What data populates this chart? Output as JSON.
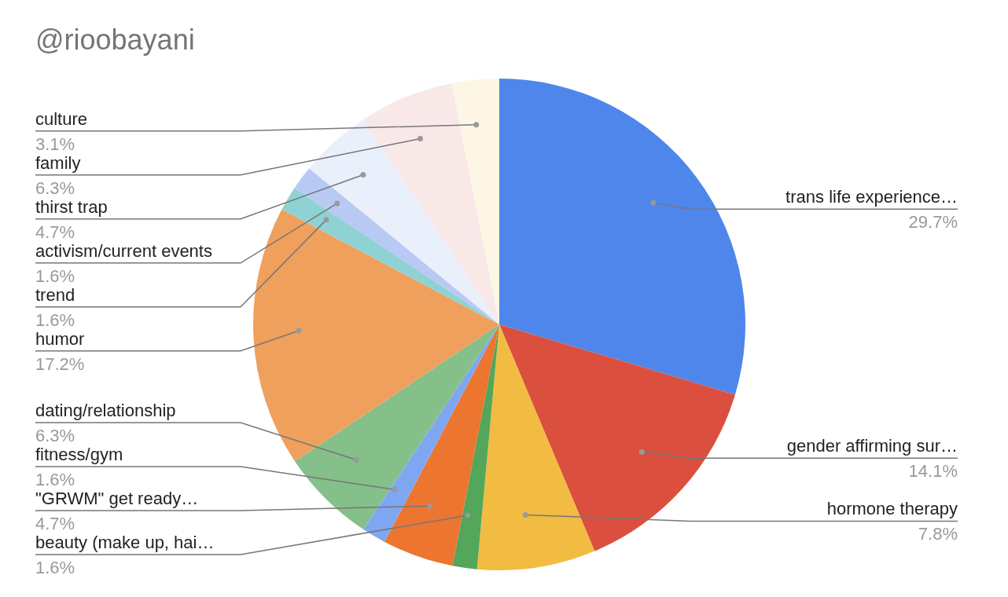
{
  "chart_data": {
    "type": "pie",
    "title": "@rioobayani",
    "categories": [
      "trans life experience…",
      "gender affirming sur…",
      "hormone therapy",
      "beauty (make up, hai…",
      "\"GRWM\" get ready…",
      "fitness/gym",
      "dating/relationship",
      "humor",
      "trend",
      "activism/current events",
      "thirst trap",
      "family",
      "culture"
    ],
    "values": [
      29.7,
      14.1,
      7.8,
      1.6,
      4.7,
      1.6,
      6.3,
      17.2,
      1.6,
      1.6,
      4.7,
      6.3,
      3.1
    ],
    "value_labels": [
      "29.7%",
      "14.1%",
      "7.8%",
      "1.6%",
      "4.7%",
      "1.6%",
      "6.3%",
      "17.2%",
      "1.6%",
      "1.6%",
      "4.7%",
      "6.3%",
      "3.1%"
    ],
    "colors": [
      "#4f86ec",
      "#db4f3f",
      "#f2bb41",
      "#53a65a",
      "#ec7530",
      "#7fa7f1",
      "#85bf8a",
      "#efa05d",
      "#8fd2d3",
      "#b8c9f3",
      "#e9effb",
      "#f8e8e8",
      "#fef6e5"
    ],
    "legend": false
  }
}
